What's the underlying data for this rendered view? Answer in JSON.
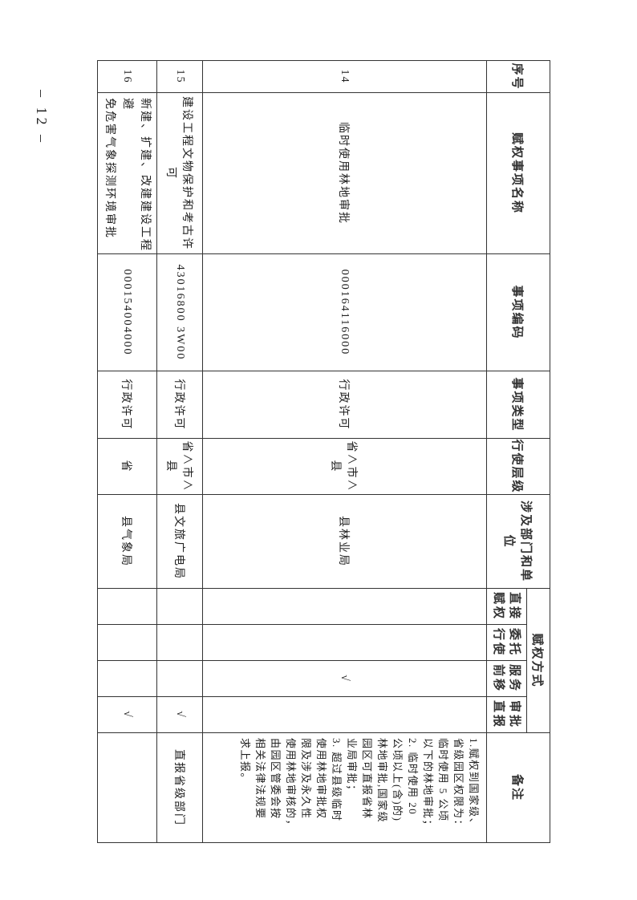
{
  "page_number": "– 12 –",
  "table": {
    "headers": {
      "seq": "序号",
      "name": "赋权事项名称",
      "code": "事项编码",
      "type": "事项类型",
      "level": "行使层级",
      "dept": "涉及部门和单位",
      "method_group": "赋权方式",
      "method_direct": [
        "直接",
        "赋权"
      ],
      "method_entrust": [
        "委托",
        "行使"
      ],
      "method_service": [
        "服务",
        "前移"
      ],
      "method_report": [
        "审批",
        "直报"
      ],
      "remark": "备注"
    },
    "check_mark": "√",
    "rows": [
      {
        "seq": "14",
        "name": "临时使用林地审批",
        "code": "000164116000",
        "type": "行政许可",
        "level": "省∧市∧县",
        "dept": "县林业局",
        "method": "service",
        "remark_lines": [
          "1.赋权到国家级、",
          "省级园区权限为：",
          "临时使用 5 公顷",
          "以下的林地审批；",
          "2. 临时使用 20",
          "公顷以上(含)的)",
          "林地审批,国家级",
          "园区可直报省林",
          "业局审批；",
          "3. 超过县级临时",
          "使用林地审批权",
          "限及涉及永久性",
          "使用林地审核的，",
          "由园区管委会按",
          "相关法律法规要",
          "求上报。"
        ]
      },
      {
        "seq": "15",
        "name": "建设工程文物保护和考古许可",
        "code": "43016800 3W00",
        "type": "行政许可",
        "level": "省∧市∧县",
        "dept": "县文旅广电局",
        "method": "report",
        "remark": "直报省级部门"
      },
      {
        "seq": "16",
        "name_lines": [
          "新建、扩建、改建建设工程避",
          "免危害气象探测环境审批"
        ],
        "code": "000154004000",
        "type": "行政许可",
        "level": "省",
        "dept": "县气象局",
        "method": "report",
        "remark": ""
      }
    ]
  }
}
